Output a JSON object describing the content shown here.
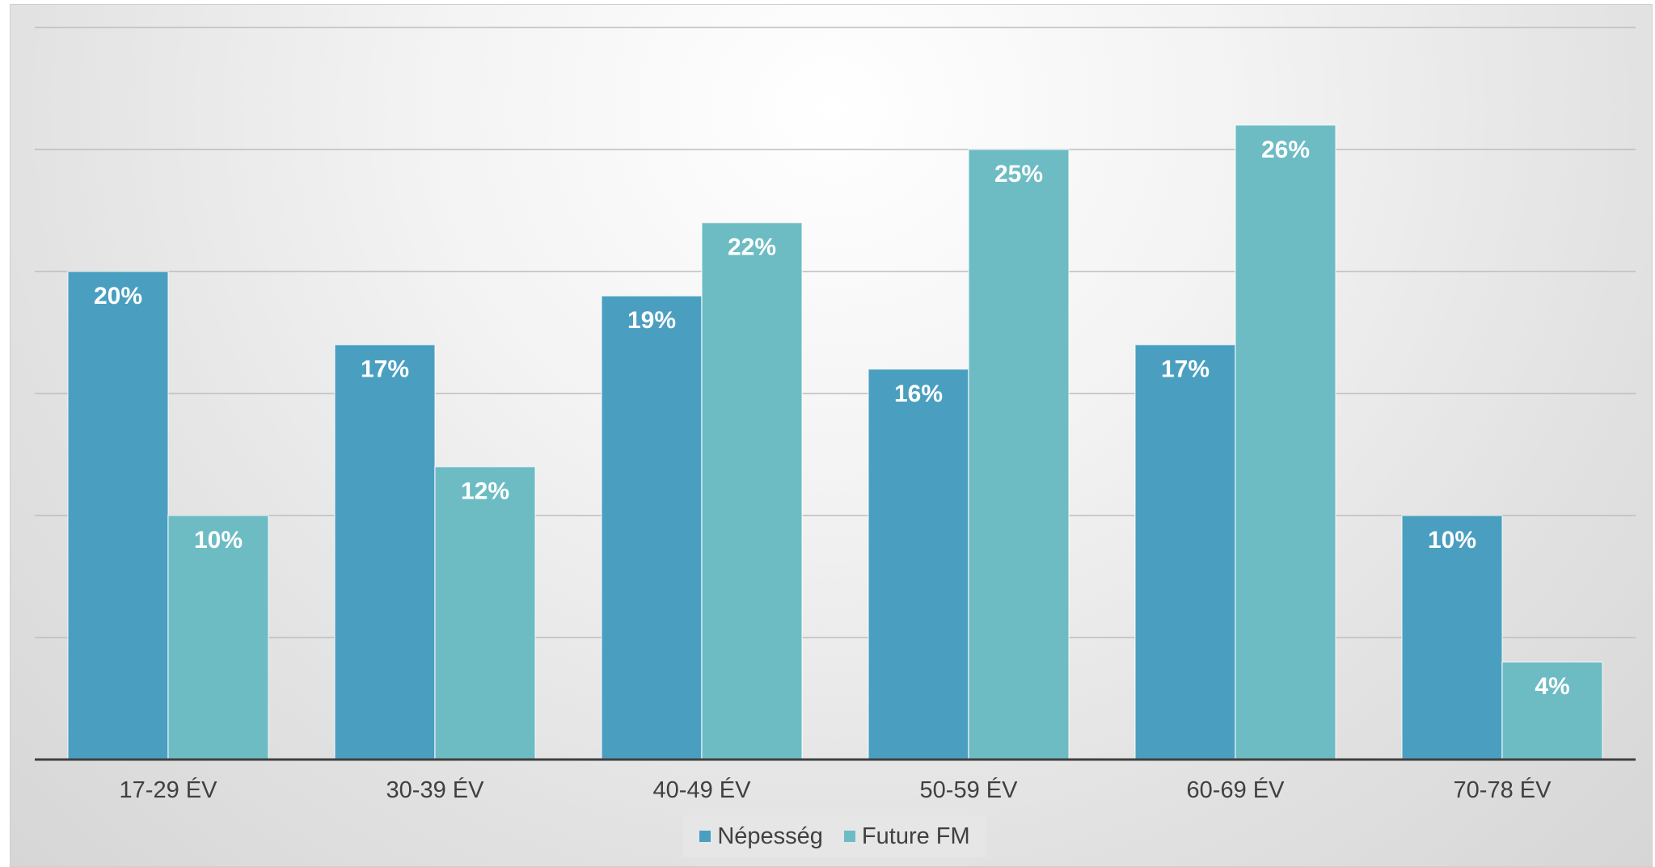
{
  "colors": {
    "nepesseg": "#4a9fc1",
    "future_fm": "#6dbcc4",
    "grid": "#bdbdbd",
    "axis": "#404040",
    "label_text": "#ffffff",
    "tick_text": "#404040"
  },
  "chart_data": {
    "type": "bar",
    "categories": [
      "17-29 ÉV",
      "30-39 ÉV",
      "40-49 ÉV",
      "50-59 ÉV",
      "60-69 ÉV",
      "70-78 ÉV"
    ],
    "series": [
      {
        "name": "Népesség",
        "values": [
          20,
          17,
          19,
          16,
          17,
          10
        ],
        "labels": [
          "20%",
          "17%",
          "19%",
          "16%",
          "17%",
          "10%"
        ]
      },
      {
        "name": "Future FM",
        "values": [
          10,
          12,
          22,
          25,
          26,
          4
        ],
        "labels": [
          "10%",
          "12%",
          "22%",
          "25%",
          "26%",
          "4%"
        ]
      }
    ],
    "ylim": [
      0,
      30
    ],
    "grid": true,
    "legend": "bottom",
    "title": "",
    "xlabel": "",
    "ylabel": ""
  }
}
